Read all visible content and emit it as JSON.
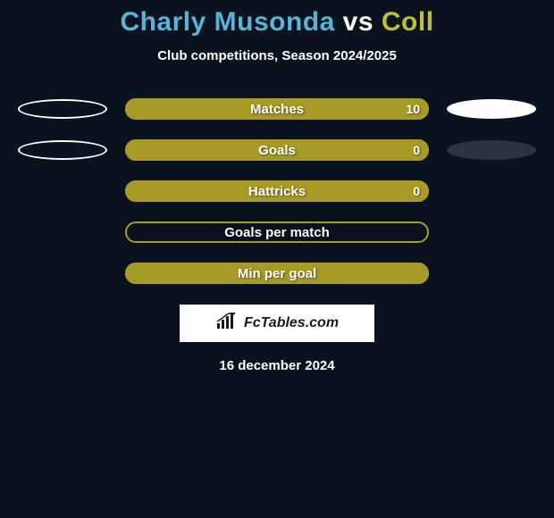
{
  "colors": {
    "background": "#0a1220",
    "accent": "#a79a27",
    "title_p1": "#58b4d4",
    "title_p2": "#ffffff",
    "title_p3": "#bdc035",
    "text": "#ffffff",
    "ellipse_dark": "#2b3340",
    "logo_bg": "#ffffff",
    "logo_text": "#1a1a1a"
  },
  "title": {
    "p1": "Charly Musonda",
    "p2": "vs",
    "p3": "Coll"
  },
  "subtitle": "Club competitions, Season 2024/2025",
  "stats": [
    {
      "label": "Matches",
      "value": "10",
      "fill_pct": 100,
      "left_ellipse": "outline-white",
      "right_ellipse": "fill-white"
    },
    {
      "label": "Goals",
      "value": "0",
      "fill_pct": 100,
      "left_ellipse": "outline-white",
      "right_ellipse": "fill-dark"
    },
    {
      "label": "Hattricks",
      "value": "0",
      "fill_pct": 100,
      "left_ellipse": null,
      "right_ellipse": null
    },
    {
      "label": "Goals per match",
      "value": "",
      "fill_pct": 0,
      "left_ellipse": null,
      "right_ellipse": null
    },
    {
      "label": "Min per goal",
      "value": "",
      "fill_pct": 100,
      "left_ellipse": null,
      "right_ellipse": null
    }
  ],
  "logo": {
    "text": "FcTables.com"
  },
  "date": "16 december 2024"
}
